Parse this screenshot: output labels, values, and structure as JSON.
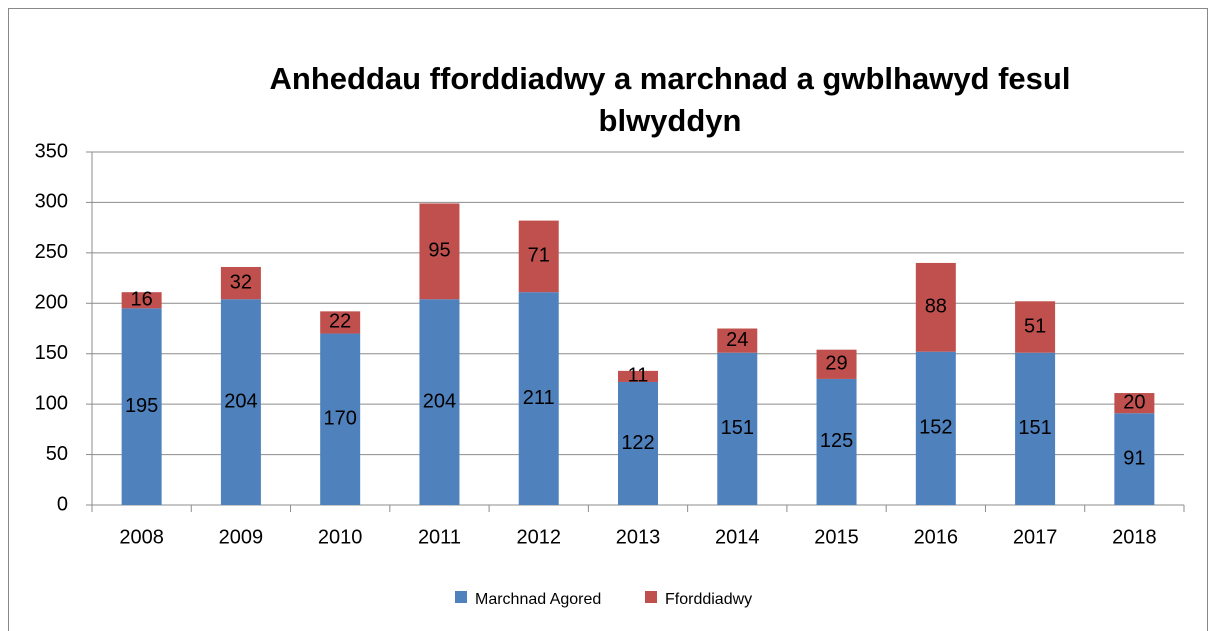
{
  "chart_data": {
    "type": "stacked_bar",
    "title": "Anheddau fforddiadwy a marchnad a gwblhawyd fesul blwyddyn",
    "categories": [
      "2008",
      "2009",
      "2010",
      "2011",
      "2012",
      "2013",
      "2014",
      "2015",
      "2016",
      "2017",
      "2018"
    ],
    "series": [
      {
        "name": "Marchnad Agored",
        "color": "#4f81bd",
        "values": [
          195,
          204,
          170,
          204,
          211,
          122,
          151,
          125,
          152,
          151,
          91
        ]
      },
      {
        "name": "Fforddiadwy",
        "color": "#c0504d",
        "values": [
          16,
          32,
          22,
          95,
          71,
          11,
          24,
          29,
          88,
          51,
          20
        ]
      }
    ],
    "ylim": [
      0,
      350
    ],
    "yticks": [
      0,
      50,
      100,
      150,
      200,
      250,
      300,
      350
    ],
    "grid": true,
    "legend": "bottom"
  }
}
